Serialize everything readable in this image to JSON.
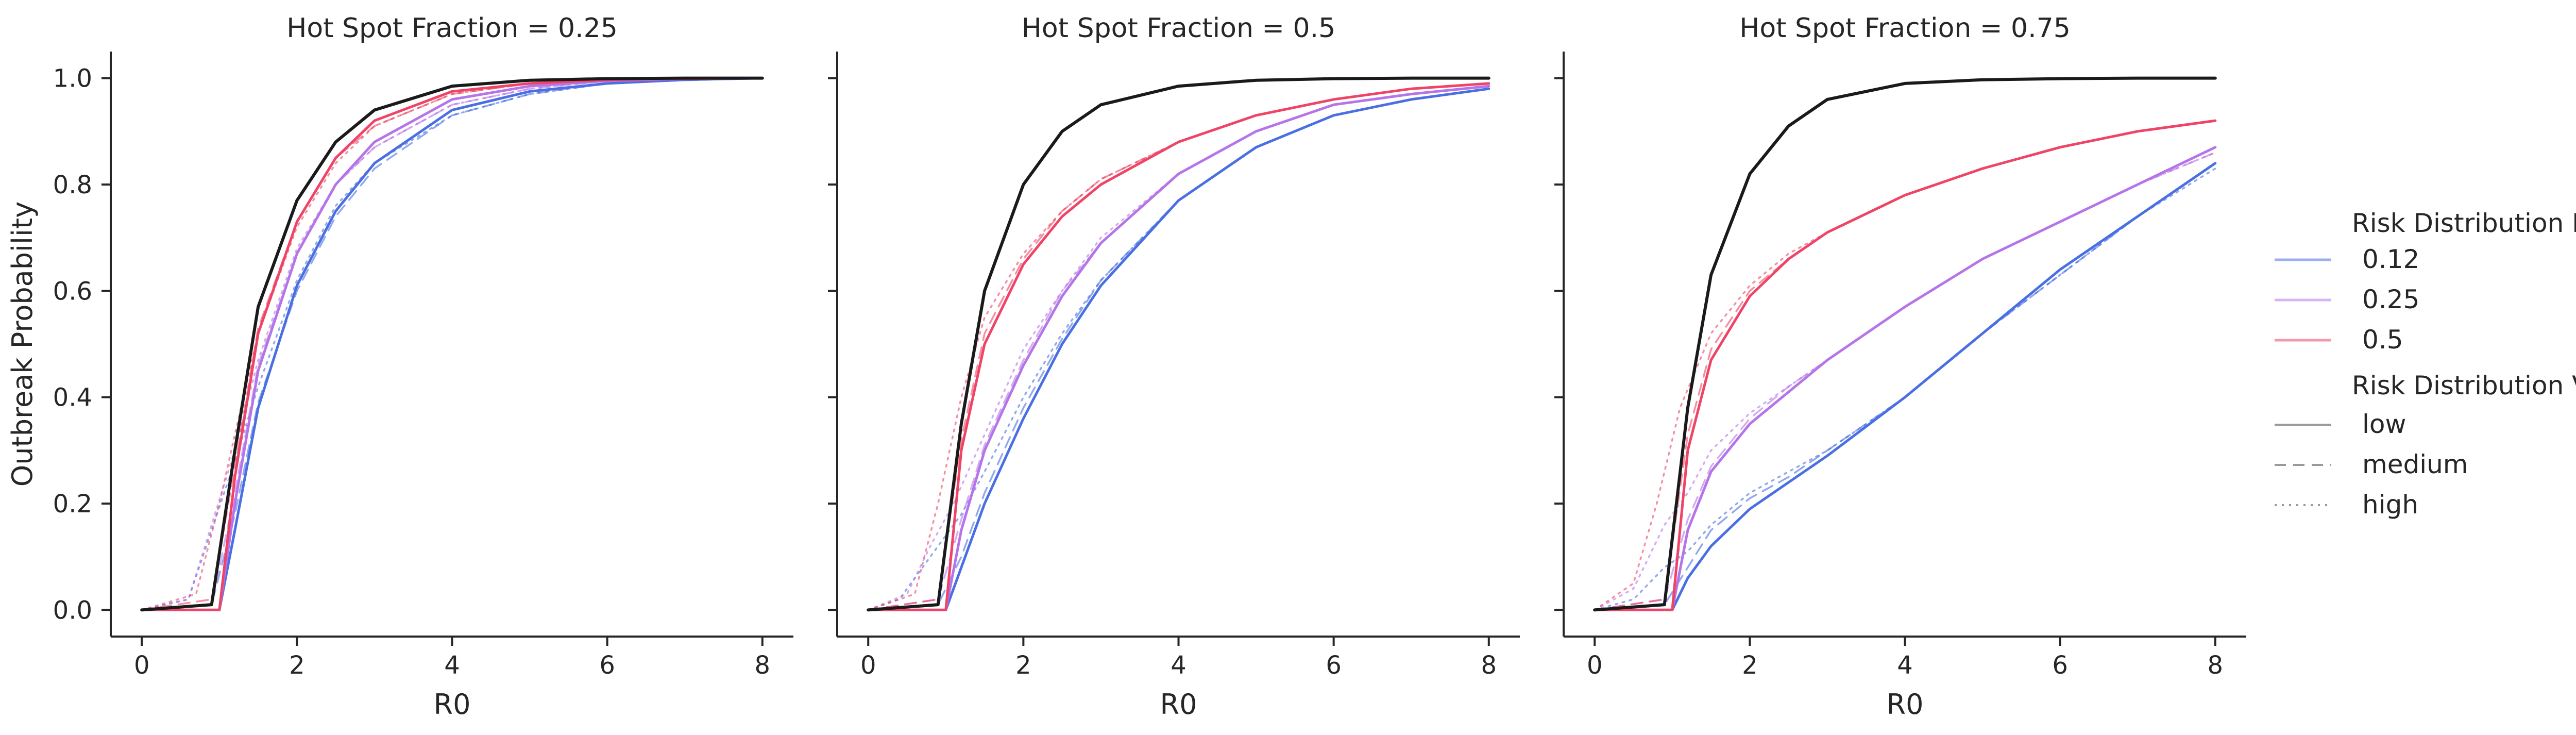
{
  "chart_data": [
    {
      "type": "line",
      "title": "Hot Spot Fraction = 0.25",
      "xlabel": "R0",
      "ylabel": "Outbreak Probability",
      "xlim": [
        -0.4,
        8.4
      ],
      "ylim": [
        -0.05,
        1.05
      ],
      "xticks": [
        "0",
        "2",
        "4",
        "6",
        "8"
      ],
      "yticks": [
        "0.0",
        "0.2",
        "0.4",
        "0.6",
        "0.8",
        "1.0"
      ],
      "grid": false,
      "series": [
        {
          "mean": "0.12",
          "variance": "low",
          "x": [
            0,
            1,
            1.2,
            1.5,
            2,
            2.5,
            3,
            4,
            5,
            6,
            7,
            8
          ],
          "y": [
            0,
            0,
            0.15,
            0.38,
            0.61,
            0.75,
            0.84,
            0.94,
            0.975,
            0.99,
            0.997,
            1.0
          ]
        },
        {
          "mean": "0.12",
          "variance": "medium",
          "x": [
            0,
            0.9,
            1.2,
            1.5,
            2,
            2.5,
            3,
            4,
            5,
            6,
            7,
            8
          ],
          "y": [
            0,
            0.01,
            0.18,
            0.39,
            0.6,
            0.74,
            0.83,
            0.93,
            0.97,
            0.99,
            0.996,
            1.0
          ]
        },
        {
          "mean": "0.12",
          "variance": "high",
          "x": [
            0,
            0.6,
            0.9,
            1.2,
            1.5,
            2,
            2.5,
            3,
            4,
            5,
            6,
            7,
            8
          ],
          "y": [
            0,
            0.02,
            0.15,
            0.28,
            0.42,
            0.62,
            0.76,
            0.84,
            0.93,
            0.97,
            0.99,
            0.996,
            1.0
          ]
        },
        {
          "mean": "0.25",
          "variance": "low",
          "x": [
            0,
            1,
            1.2,
            1.5,
            2,
            2.5,
            3,
            4,
            5,
            6,
            7,
            8
          ],
          "y": [
            0,
            0,
            0.2,
            0.45,
            0.67,
            0.8,
            0.88,
            0.96,
            0.985,
            0.995,
            0.999,
            1.0
          ]
        },
        {
          "mean": "0.25",
          "variance": "medium",
          "x": [
            0,
            0.9,
            1.2,
            1.5,
            2,
            2.5,
            3,
            4,
            5,
            6,
            7,
            8
          ],
          "y": [
            0,
            0.01,
            0.22,
            0.46,
            0.67,
            0.8,
            0.87,
            0.95,
            0.98,
            0.995,
            0.998,
            1.0
          ]
        },
        {
          "mean": "0.25",
          "variance": "high",
          "x": [
            0,
            0.6,
            0.9,
            1.2,
            1.5,
            2,
            2.5,
            3,
            4,
            5,
            6,
            7,
            8
          ],
          "y": [
            0,
            0.02,
            0.16,
            0.3,
            0.47,
            0.68,
            0.8,
            0.87,
            0.95,
            0.98,
            0.995,
            0.998,
            1.0
          ]
        },
        {
          "mean": "0.5",
          "variance": "low",
          "x": [
            0,
            1,
            1.2,
            1.5,
            2,
            2.5,
            3,
            4,
            5,
            6,
            7,
            8
          ],
          "y": [
            0,
            0,
            0.25,
            0.52,
            0.73,
            0.85,
            0.92,
            0.975,
            0.99,
            0.997,
            0.999,
            1.0
          ]
        },
        {
          "mean": "0.5",
          "variance": "medium",
          "x": [
            0,
            0.9,
            1.2,
            1.5,
            2,
            2.5,
            3,
            4,
            5,
            6,
            7,
            8
          ],
          "y": [
            0,
            0.02,
            0.27,
            0.53,
            0.73,
            0.85,
            0.91,
            0.97,
            0.99,
            0.996,
            0.999,
            1.0
          ]
        },
        {
          "mean": "0.5",
          "variance": "high",
          "x": [
            0,
            0.7,
            1.0,
            1.2,
            1.5,
            2,
            2.5,
            3,
            4,
            5,
            6,
            7,
            8
          ],
          "y": [
            0,
            0.03,
            0.2,
            0.33,
            0.52,
            0.72,
            0.84,
            0.91,
            0.97,
            0.99,
            0.996,
            0.999,
            1.0
          ]
        },
        {
          "mean": "reference",
          "variance": "low",
          "x": [
            0,
            0.9,
            1.2,
            1.5,
            2,
            2.5,
            3,
            4,
            5,
            6,
            7,
            8
          ],
          "y": [
            0,
            0.01,
            0.3,
            0.57,
            0.77,
            0.88,
            0.94,
            0.985,
            0.996,
            0.999,
            1.0,
            1.0
          ]
        }
      ]
    },
    {
      "type": "line",
      "title": "Hot Spot Fraction = 0.5",
      "xlabel": "R0",
      "ylabel": "",
      "xlim": [
        -0.4,
        8.4
      ],
      "ylim": [
        -0.05,
        1.05
      ],
      "xticks": [
        "0",
        "2",
        "4",
        "6",
        "8"
      ],
      "yticks": [
        "0.0",
        "0.2",
        "0.4",
        "0.6",
        "0.8",
        "1.0"
      ],
      "grid": false,
      "series": [
        {
          "mean": "0.12",
          "variance": "low",
          "x": [
            0,
            1,
            1.2,
            1.5,
            2,
            2.5,
            3,
            4,
            5,
            6,
            7,
            8
          ],
          "y": [
            0,
            0,
            0.08,
            0.2,
            0.36,
            0.5,
            0.61,
            0.77,
            0.87,
            0.93,
            0.96,
            0.98
          ]
        },
        {
          "mean": "0.12",
          "variance": "medium",
          "x": [
            0,
            0.9,
            1.2,
            1.5,
            2,
            2.5,
            3,
            4,
            5,
            6,
            7,
            8
          ],
          "y": [
            0,
            0.01,
            0.1,
            0.22,
            0.38,
            0.51,
            0.62,
            0.77,
            0.87,
            0.93,
            0.96,
            0.98
          ]
        },
        {
          "mean": "0.12",
          "variance": "high",
          "x": [
            0,
            0.4,
            0.8,
            1.2,
            1.5,
            2,
            2.5,
            3,
            4,
            5,
            6,
            7,
            8
          ],
          "y": [
            0,
            0.02,
            0.1,
            0.18,
            0.26,
            0.4,
            0.52,
            0.62,
            0.77,
            0.87,
            0.93,
            0.96,
            0.98
          ]
        },
        {
          "mean": "0.25",
          "variance": "low",
          "x": [
            0,
            1,
            1.2,
            1.5,
            2,
            2.5,
            3,
            4,
            5,
            6,
            7,
            8
          ],
          "y": [
            0,
            0,
            0.15,
            0.3,
            0.46,
            0.59,
            0.69,
            0.82,
            0.9,
            0.95,
            0.97,
            0.985
          ]
        },
        {
          "mean": "0.25",
          "variance": "medium",
          "x": [
            0,
            0.9,
            1.2,
            1.5,
            2,
            2.5,
            3,
            4,
            5,
            6,
            7,
            8
          ],
          "y": [
            0,
            0.02,
            0.17,
            0.31,
            0.47,
            0.6,
            0.69,
            0.82,
            0.9,
            0.95,
            0.97,
            0.985
          ]
        },
        {
          "mean": "0.25",
          "variance": "high",
          "x": [
            0,
            0.5,
            0.8,
            1.1,
            1.5,
            2,
            2.5,
            3,
            4,
            5,
            6,
            7,
            8
          ],
          "y": [
            0,
            0.03,
            0.12,
            0.2,
            0.33,
            0.49,
            0.6,
            0.7,
            0.82,
            0.9,
            0.95,
            0.97,
            0.985
          ]
        },
        {
          "mean": "0.5",
          "variance": "low",
          "x": [
            0,
            1,
            1.2,
            1.5,
            2,
            2.5,
            3,
            4,
            5,
            6,
            7,
            8
          ],
          "y": [
            0,
            0,
            0.3,
            0.5,
            0.65,
            0.74,
            0.8,
            0.88,
            0.93,
            0.96,
            0.98,
            0.99
          ]
        },
        {
          "mean": "0.5",
          "variance": "medium",
          "x": [
            0,
            0.9,
            1.2,
            1.5,
            2,
            2.5,
            3,
            4,
            5,
            6,
            7,
            8
          ],
          "y": [
            0,
            0.02,
            0.32,
            0.52,
            0.66,
            0.75,
            0.81,
            0.88,
            0.93,
            0.96,
            0.98,
            0.99
          ]
        },
        {
          "mean": "0.5",
          "variance": "high",
          "x": [
            0,
            0.6,
            0.9,
            1.2,
            1.5,
            2,
            2.5,
            3,
            4,
            5,
            6,
            7,
            8
          ],
          "y": [
            0,
            0.03,
            0.2,
            0.4,
            0.55,
            0.67,
            0.75,
            0.81,
            0.88,
            0.93,
            0.96,
            0.98,
            0.99
          ]
        },
        {
          "mean": "reference",
          "variance": "low",
          "x": [
            0,
            0.9,
            1.2,
            1.5,
            2,
            2.5,
            3,
            4,
            5,
            6,
            7,
            8
          ],
          "y": [
            0,
            0.01,
            0.35,
            0.6,
            0.8,
            0.9,
            0.95,
            0.985,
            0.996,
            0.999,
            1.0,
            1.0
          ]
        }
      ]
    },
    {
      "type": "line",
      "title": "Hot Spot Fraction = 0.75",
      "xlabel": "R0",
      "ylabel": "",
      "xlim": [
        -0.4,
        8.4
      ],
      "ylim": [
        -0.05,
        1.05
      ],
      "xticks": [
        "0",
        "2",
        "4",
        "6",
        "8"
      ],
      "yticks": [
        "0.0",
        "0.2",
        "0.4",
        "0.6",
        "0.8",
        "1.0"
      ],
      "grid": false,
      "series": [
        {
          "mean": "0.12",
          "variance": "low",
          "x": [
            0,
            1,
            1.2,
            1.5,
            2,
            2.5,
            3,
            4,
            5,
            6,
            7,
            8
          ],
          "y": [
            0,
            0,
            0.06,
            0.12,
            0.19,
            0.24,
            0.29,
            0.4,
            0.52,
            0.64,
            0.74,
            0.84
          ]
        },
        {
          "mean": "0.12",
          "variance": "medium",
          "x": [
            0,
            0.9,
            1.2,
            1.5,
            2,
            2.5,
            3,
            4,
            5,
            6,
            7,
            8
          ],
          "y": [
            0,
            0.01,
            0.08,
            0.15,
            0.21,
            0.25,
            0.3,
            0.4,
            0.52,
            0.63,
            0.74,
            0.84
          ]
        },
        {
          "mean": "0.12",
          "variance": "high",
          "x": [
            0,
            0.5,
            0.9,
            1.2,
            1.5,
            2,
            2.5,
            3,
            4,
            5,
            6,
            7,
            8
          ],
          "y": [
            0,
            0.02,
            0.08,
            0.11,
            0.16,
            0.22,
            0.26,
            0.3,
            0.4,
            0.52,
            0.63,
            0.74,
            0.83
          ]
        },
        {
          "mean": "0.25",
          "variance": "low",
          "x": [
            0,
            1,
            1.2,
            1.5,
            2,
            2.5,
            3,
            4,
            5,
            6,
            7,
            8
          ],
          "y": [
            0,
            0,
            0.15,
            0.26,
            0.35,
            0.41,
            0.47,
            0.57,
            0.66,
            0.73,
            0.8,
            0.87
          ]
        },
        {
          "mean": "0.25",
          "variance": "medium",
          "x": [
            0,
            0.9,
            1.2,
            1.5,
            2,
            2.5,
            3,
            4,
            5,
            6,
            7,
            8
          ],
          "y": [
            0,
            0.02,
            0.17,
            0.27,
            0.36,
            0.42,
            0.47,
            0.57,
            0.66,
            0.73,
            0.8,
            0.86
          ]
        },
        {
          "mean": "0.25",
          "variance": "high",
          "x": [
            0,
            0.5,
            0.9,
            1.2,
            1.5,
            2,
            2.5,
            3,
            4,
            5,
            6,
            7,
            8
          ],
          "y": [
            0,
            0.04,
            0.16,
            0.22,
            0.3,
            0.37,
            0.42,
            0.47,
            0.57,
            0.66,
            0.73,
            0.8,
            0.86
          ]
        },
        {
          "mean": "0.5",
          "variance": "low",
          "x": [
            0,
            1,
            1.2,
            1.5,
            2,
            2.5,
            3,
            4,
            5,
            6,
            7,
            8
          ],
          "y": [
            0,
            0,
            0.3,
            0.47,
            0.59,
            0.66,
            0.71,
            0.78,
            0.83,
            0.87,
            0.9,
            0.92
          ]
        },
        {
          "mean": "0.5",
          "variance": "medium",
          "x": [
            0,
            0.9,
            1.2,
            1.5,
            2,
            2.5,
            3,
            4,
            5,
            6,
            7,
            8
          ],
          "y": [
            0,
            0.02,
            0.33,
            0.49,
            0.6,
            0.66,
            0.71,
            0.78,
            0.83,
            0.87,
            0.9,
            0.92
          ]
        },
        {
          "mean": "0.5",
          "variance": "high",
          "x": [
            0,
            0.5,
            0.8,
            1.1,
            1.5,
            2,
            2.5,
            3,
            4,
            5,
            6,
            7,
            8
          ],
          "y": [
            0,
            0.05,
            0.2,
            0.38,
            0.52,
            0.61,
            0.67,
            0.71,
            0.78,
            0.83,
            0.87,
            0.9,
            0.92
          ]
        },
        {
          "mean": "reference",
          "variance": "low",
          "x": [
            0,
            0.9,
            1.2,
            1.5,
            2,
            2.5,
            3,
            4,
            5,
            6,
            7,
            8
          ],
          "y": [
            0,
            0.01,
            0.38,
            0.63,
            0.82,
            0.91,
            0.96,
            0.99,
            0.997,
            0.999,
            1.0,
            1.0
          ]
        }
      ]
    }
  ],
  "legend": {
    "position": "right",
    "mean_title": "Risk Distribution Mean",
    "mean_items": [
      {
        "label": "0.12",
        "color": "#4a6fe3"
      },
      {
        "label": "0.25",
        "color": "#b574e8"
      },
      {
        "label": "0.5",
        "color": "#ef4466"
      }
    ],
    "variance_title": "Risk Distribution Variance",
    "variance_items": [
      {
        "label": "low",
        "dash": "solid"
      },
      {
        "label": "medium",
        "dash": "dashed"
      },
      {
        "label": "high",
        "dash": "dotted"
      }
    ]
  },
  "colors": {
    "0.12": "#4a6fe3",
    "0.25": "#b574e8",
    "0.5": "#ef4466",
    "reference": "#1a1a1a",
    "legend_line": "#9a9a9a"
  }
}
